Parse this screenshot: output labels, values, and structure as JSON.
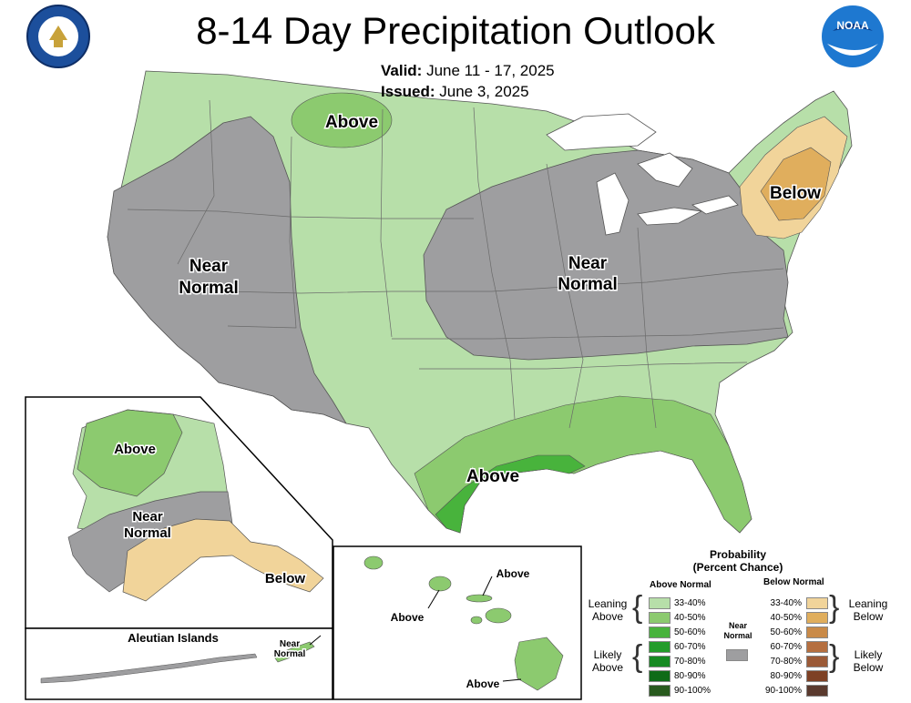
{
  "header": {
    "title": "8-14 Day Precipitation Outlook",
    "valid_label": "Valid:",
    "valid_value": "June 11 - 17, 2025",
    "issued_label": "Issued:",
    "issued_value": "June 3, 2025"
  },
  "logos": {
    "left": "department-of-commerce-seal",
    "right_text": "NOAA"
  },
  "map_labels": {
    "above_north": "Above",
    "near_normal_west": [
      "Near",
      "Normal"
    ],
    "near_normal_central": [
      "Near",
      "Normal"
    ],
    "below_northeast": "Below",
    "above_gulf": "Above",
    "alaska_above": "Above",
    "alaska_near_normal": [
      "Near",
      "Normal"
    ],
    "alaska_below": "Below",
    "aleutian_title": "Aleutian Islands",
    "aleutian_near_normal": [
      "Near",
      "Normal"
    ],
    "hawaii_above_1": "Above",
    "hawaii_above_2": "Above",
    "hawaii_above_3": "Above"
  },
  "legend": {
    "title": "Probability",
    "subtitle": "(Percent Chance)",
    "above_head": "Above Normal",
    "below_head": "Below Normal",
    "near_normal": [
      "Near",
      "Normal"
    ],
    "leaning_above": [
      "Leaning",
      "Above"
    ],
    "likely_above": [
      "Likely",
      "Above"
    ],
    "leaning_below": [
      "Leaning",
      "Below"
    ],
    "likely_below": [
      "Likely",
      "Below"
    ],
    "above": [
      {
        "label": "33-40%",
        "color": "#b7dfa9"
      },
      {
        "label": "40-50%",
        "color": "#8cca6f"
      },
      {
        "label": "50-60%",
        "color": "#48b33c"
      },
      {
        "label": "60-70%",
        "color": "#239c2a"
      },
      {
        "label": "70-80%",
        "color": "#168a22"
      },
      {
        "label": "80-90%",
        "color": "#0f6b18"
      },
      {
        "label": "90-100%",
        "color": "#285a1e"
      }
    ],
    "below": [
      {
        "label": "33-40%",
        "color": "#f1d49a"
      },
      {
        "label": "40-50%",
        "color": "#e0ae5d"
      },
      {
        "label": "50-60%",
        "color": "#c98a48"
      },
      {
        "label": "60-70%",
        "color": "#b56f40"
      },
      {
        "label": "70-80%",
        "color": "#9b5a37"
      },
      {
        "label": "80-90%",
        "color": "#7e4125"
      },
      {
        "label": "90-100%",
        "color": "#5a3a2e"
      }
    ],
    "near_color": "#9e9ea0"
  }
}
